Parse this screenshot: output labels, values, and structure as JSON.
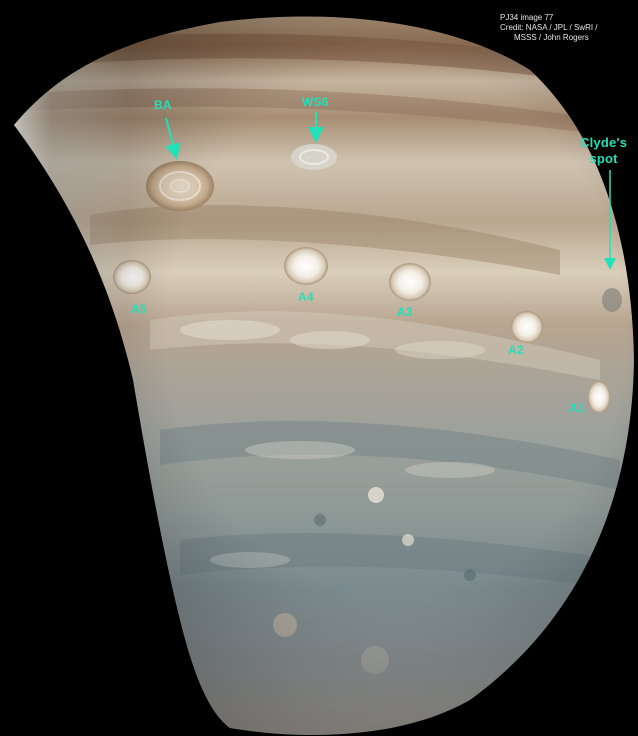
{
  "credit": {
    "line1": "PJ34  image 77",
    "line2": "Credit: NASA / JPL / SwRI /",
    "line3": "MSSS / John Rogers"
  },
  "labels": {
    "ba": "BA",
    "ws6": "WS6",
    "clydes_line1": "Clyde's",
    "clydes_line2": "spot",
    "a5": "A5",
    "a4": "A4",
    "a3": "A3",
    "a2": "A2",
    "a1": "A1"
  },
  "colors": {
    "label": "#22e0b8",
    "background": "#000000",
    "credit_text": "#e6e6e6"
  }
}
